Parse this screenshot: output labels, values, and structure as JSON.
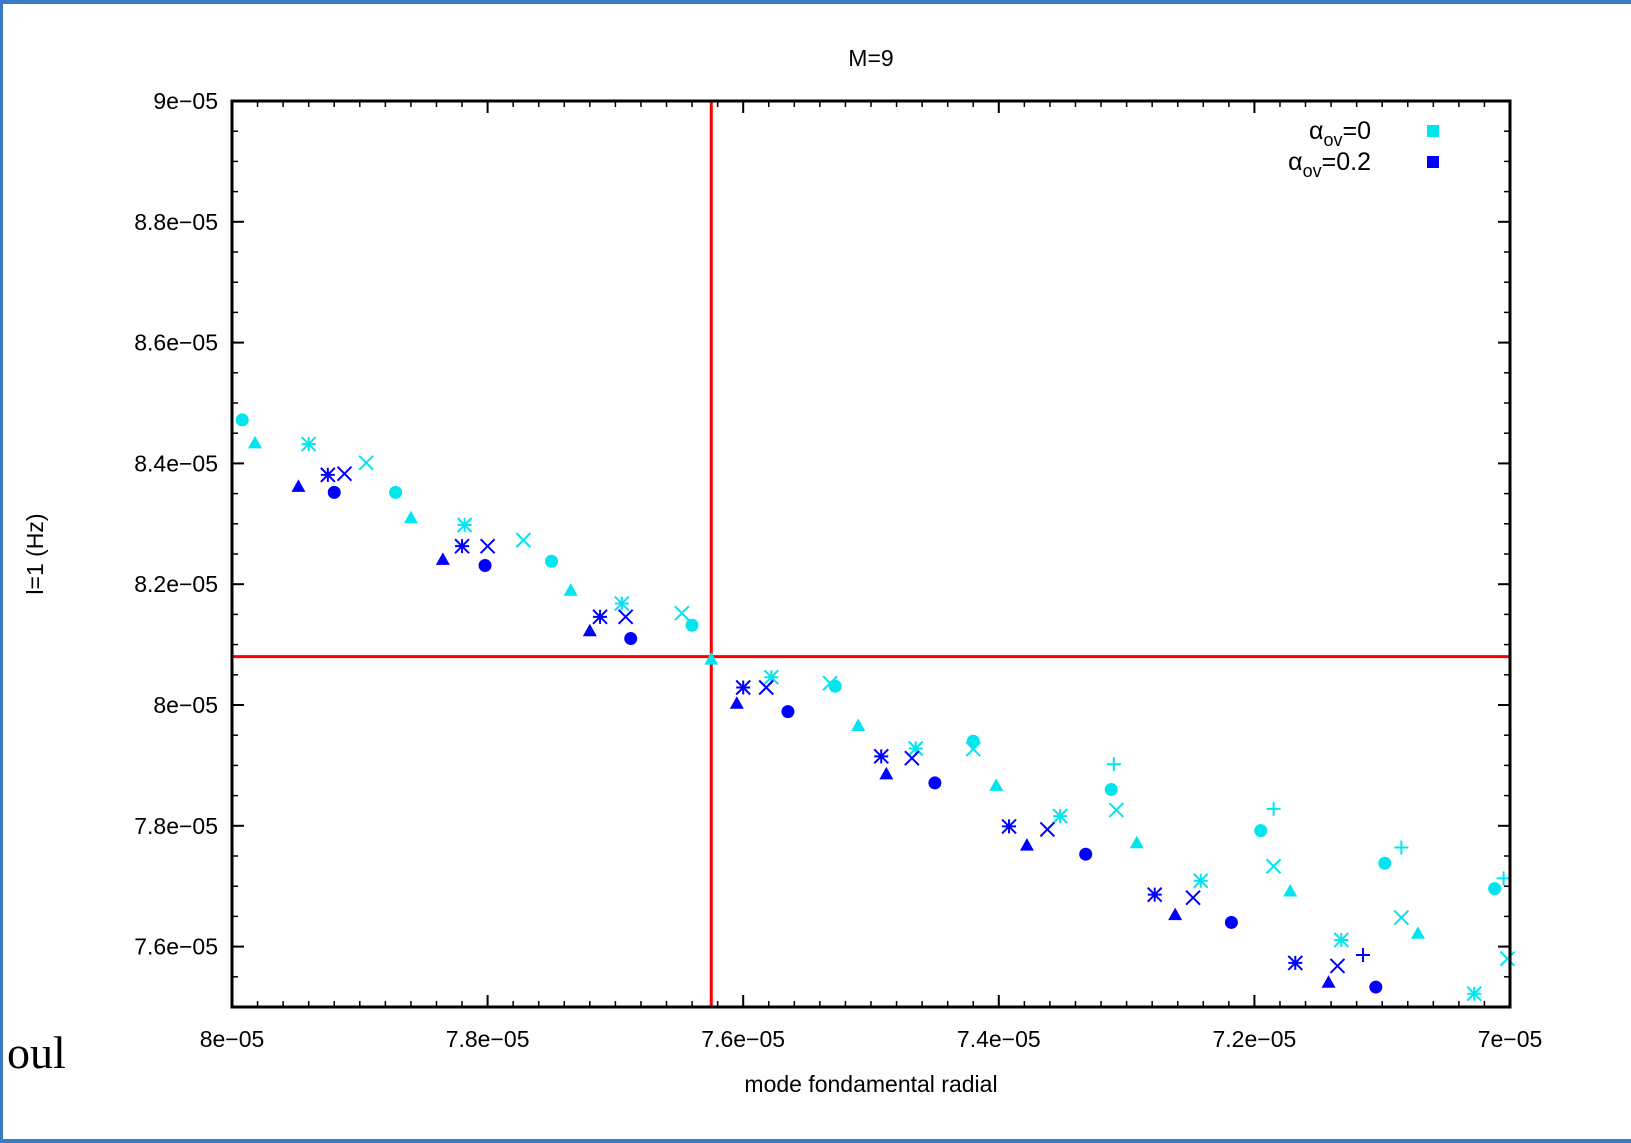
{
  "side_text": "oul",
  "colors": {
    "alpha0": "#00e5ee",
    "alpha02": "#0000ff",
    "crosshair": "#ff0000"
  },
  "chart_data": {
    "type": "scatter",
    "title": "M=9",
    "xlabel": "mode fondamental radial",
    "ylabel": "l=1 (Hz)",
    "xlim": [
      8e-05,
      7e-05
    ],
    "ylim": [
      7.5e-05,
      9e-05
    ],
    "x_reversed": true,
    "grid": false,
    "legend_position": "top-right",
    "x_ticks": [
      {
        "value": 8e-05,
        "label": "8e−05"
      },
      {
        "value": 7.8e-05,
        "label": "7.8e−05"
      },
      {
        "value": 7.6e-05,
        "label": "7.6e−05"
      },
      {
        "value": 7.4e-05,
        "label": "7.4e−05"
      },
      {
        "value": 7.2e-05,
        "label": "7.2e−05"
      },
      {
        "value": 7e-05,
        "label": "7e−05"
      }
    ],
    "y_ticks": [
      {
        "value": 9e-05,
        "label": "9e−05"
      },
      {
        "value": 8.8e-05,
        "label": "8.8e−05"
      },
      {
        "value": 8.6e-05,
        "label": "8.6e−05"
      },
      {
        "value": 8.4e-05,
        "label": "8.4e−05"
      },
      {
        "value": 8.2e-05,
        "label": "8.2e−05"
      },
      {
        "value": 8e-05,
        "label": "8e−05"
      },
      {
        "value": 7.8e-05,
        "label": "7.8e−05"
      },
      {
        "value": 7.6e-05,
        "label": "7.6e−05"
      }
    ],
    "crosshair": {
      "x": 7.625e-05,
      "y": 8.08e-05
    },
    "legend": [
      {
        "name_base": "α",
        "name_sub": "ov",
        "name_rest": "=0",
        "series": "alpha0"
      },
      {
        "name_base": "α",
        "name_sub": "ov",
        "name_rest": "=0.2",
        "series": "alpha02"
      }
    ],
    "series": [
      {
        "key": "alpha0",
        "points": [
          {
            "x": 7.992e-05,
            "y": 8.472e-05,
            "marker": "circle"
          },
          {
            "x": 7.982e-05,
            "y": 8.434e-05,
            "marker": "triangle"
          },
          {
            "x": 7.94e-05,
            "y": 8.432e-05,
            "marker": "asterisk"
          },
          {
            "x": 7.895e-05,
            "y": 8.401e-05,
            "marker": "x"
          },
          {
            "x": 7.872e-05,
            "y": 8.352e-05,
            "marker": "circle"
          },
          {
            "x": 7.86e-05,
            "y": 8.31e-05,
            "marker": "triangle"
          },
          {
            "x": 7.818e-05,
            "y": 8.298e-05,
            "marker": "asterisk"
          },
          {
            "x": 7.772e-05,
            "y": 8.273e-05,
            "marker": "x"
          },
          {
            "x": 7.75e-05,
            "y": 8.238e-05,
            "marker": "circle"
          },
          {
            "x": 7.735e-05,
            "y": 8.19e-05,
            "marker": "triangle"
          },
          {
            "x": 7.695e-05,
            "y": 8.168e-05,
            "marker": "asterisk"
          },
          {
            "x": 7.648e-05,
            "y": 8.152e-05,
            "marker": "x"
          },
          {
            "x": 7.64e-05,
            "y": 8.132e-05,
            "marker": "circle"
          },
          {
            "x": 7.625e-05,
            "y": 8.076e-05,
            "marker": "triangle"
          },
          {
            "x": 7.578e-05,
            "y": 8.046e-05,
            "marker": "asterisk"
          },
          {
            "x": 7.532e-05,
            "y": 8.036e-05,
            "marker": "x"
          },
          {
            "x": 7.528e-05,
            "y": 8.031e-05,
            "marker": "circle"
          },
          {
            "x": 7.51e-05,
            "y": 7.966e-05,
            "marker": "triangle"
          },
          {
            "x": 7.465e-05,
            "y": 7.928e-05,
            "marker": "asterisk"
          },
          {
            "x": 7.42e-05,
            "y": 7.927e-05,
            "marker": "x"
          },
          {
            "x": 7.42e-05,
            "y": 7.94e-05,
            "marker": "circle"
          },
          {
            "x": 7.402e-05,
            "y": 7.867e-05,
            "marker": "triangle"
          },
          {
            "x": 7.352e-05,
            "y": 7.816e-05,
            "marker": "asterisk"
          },
          {
            "x": 7.31e-05,
            "y": 7.902e-05,
            "marker": "plus"
          },
          {
            "x": 7.312e-05,
            "y": 7.86e-05,
            "marker": "circle"
          },
          {
            "x": 7.308e-05,
            "y": 7.826e-05,
            "marker": "x"
          },
          {
            "x": 7.292e-05,
            "y": 7.772e-05,
            "marker": "triangle"
          },
          {
            "x": 7.242e-05,
            "y": 7.709e-05,
            "marker": "asterisk"
          },
          {
            "x": 7.185e-05,
            "y": 7.828e-05,
            "marker": "plus"
          },
          {
            "x": 7.195e-05,
            "y": 7.792e-05,
            "marker": "circle"
          },
          {
            "x": 7.185e-05,
            "y": 7.733e-05,
            "marker": "x"
          },
          {
            "x": 7.172e-05,
            "y": 7.692e-05,
            "marker": "triangle"
          },
          {
            "x": 7.132e-05,
            "y": 7.611e-05,
            "marker": "asterisk"
          },
          {
            "x": 7.085e-05,
            "y": 7.764e-05,
            "marker": "plus"
          },
          {
            "x": 7.098e-05,
            "y": 7.738e-05,
            "marker": "circle"
          },
          {
            "x": 7.085e-05,
            "y": 7.648e-05,
            "marker": "x"
          },
          {
            "x": 7.072e-05,
            "y": 7.622e-05,
            "marker": "triangle"
          },
          {
            "x": 7.028e-05,
            "y": 7.522e-05,
            "marker": "asterisk"
          },
          {
            "x": 7.005e-05,
            "y": 7.713e-05,
            "marker": "plus"
          },
          {
            "x": 7.012e-05,
            "y": 7.696e-05,
            "marker": "circle"
          },
          {
            "x": 7.002e-05,
            "y": 7.58e-05,
            "marker": "x"
          }
        ]
      },
      {
        "key": "alpha02",
        "points": [
          {
            "x": 7.948e-05,
            "y": 8.362e-05,
            "marker": "triangle"
          },
          {
            "x": 7.925e-05,
            "y": 8.381e-05,
            "marker": "asterisk"
          },
          {
            "x": 7.912e-05,
            "y": 8.383e-05,
            "marker": "x"
          },
          {
            "x": 7.92e-05,
            "y": 8.352e-05,
            "marker": "circle"
          },
          {
            "x": 7.835e-05,
            "y": 8.241e-05,
            "marker": "triangle"
          },
          {
            "x": 7.82e-05,
            "y": 8.263e-05,
            "marker": "asterisk"
          },
          {
            "x": 7.8e-05,
            "y": 8.263e-05,
            "marker": "x"
          },
          {
            "x": 7.802e-05,
            "y": 8.231e-05,
            "marker": "circle"
          },
          {
            "x": 7.72e-05,
            "y": 8.123e-05,
            "marker": "triangle"
          },
          {
            "x": 7.712e-05,
            "y": 8.146e-05,
            "marker": "asterisk"
          },
          {
            "x": 7.692e-05,
            "y": 8.146e-05,
            "marker": "x"
          },
          {
            "x": 7.688e-05,
            "y": 8.11e-05,
            "marker": "circle"
          },
          {
            "x": 7.605e-05,
            "y": 8.003e-05,
            "marker": "triangle"
          },
          {
            "x": 7.6e-05,
            "y": 8.029e-05,
            "marker": "asterisk"
          },
          {
            "x": 7.582e-05,
            "y": 8.029e-05,
            "marker": "x"
          },
          {
            "x": 7.565e-05,
            "y": 7.989e-05,
            "marker": "circle"
          },
          {
            "x": 7.488e-05,
            "y": 7.886e-05,
            "marker": "triangle"
          },
          {
            "x": 7.492e-05,
            "y": 7.915e-05,
            "marker": "asterisk"
          },
          {
            "x": 7.468e-05,
            "y": 7.912e-05,
            "marker": "x"
          },
          {
            "x": 7.45e-05,
            "y": 7.871e-05,
            "marker": "circle"
          },
          {
            "x": 7.378e-05,
            "y": 7.768e-05,
            "marker": "triangle"
          },
          {
            "x": 7.392e-05,
            "y": 7.799e-05,
            "marker": "asterisk"
          },
          {
            "x": 7.362e-05,
            "y": 7.794e-05,
            "marker": "x"
          },
          {
            "x": 7.332e-05,
            "y": 7.753e-05,
            "marker": "circle"
          },
          {
            "x": 7.262e-05,
            "y": 7.653e-05,
            "marker": "triangle"
          },
          {
            "x": 7.278e-05,
            "y": 7.686e-05,
            "marker": "asterisk"
          },
          {
            "x": 7.248e-05,
            "y": 7.681e-05,
            "marker": "x"
          },
          {
            "x": 7.218e-05,
            "y": 7.64e-05,
            "marker": "circle"
          },
          {
            "x": 7.142e-05,
            "y": 7.541e-05,
            "marker": "triangle"
          },
          {
            "x": 7.168e-05,
            "y": 7.573e-05,
            "marker": "asterisk"
          },
          {
            "x": 7.135e-05,
            "y": 7.568e-05,
            "marker": "x"
          },
          {
            "x": 7.105e-05,
            "y": 7.533e-05,
            "marker": "circle"
          },
          {
            "x": 7.115e-05,
            "y": 7.586e-05,
            "marker": "plus"
          }
        ]
      }
    ]
  }
}
